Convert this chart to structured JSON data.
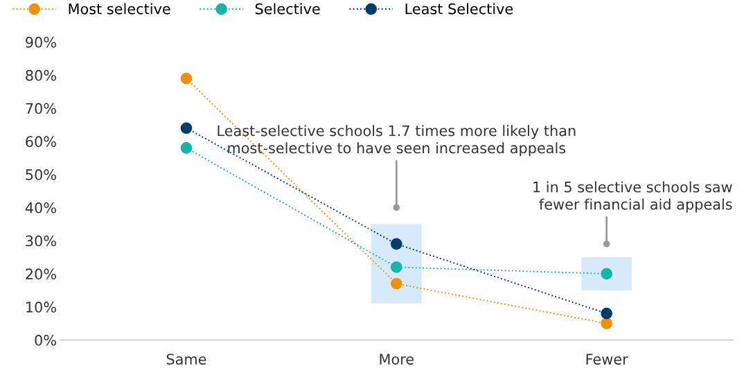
{
  "chart_data": {
    "type": "line",
    "categories": [
      "Same",
      "More",
      "Fewer"
    ],
    "series": [
      {
        "name": "Most selective",
        "color": "#f0900f",
        "values": [
          79,
          17,
          5
        ]
      },
      {
        "name": "Selective",
        "color": "#17b3ad",
        "values": [
          58,
          22,
          20
        ]
      },
      {
        "name": "Least Selective",
        "color": "#003d6b",
        "values": [
          64,
          29,
          8
        ]
      }
    ],
    "ylim": [
      0,
      90
    ],
    "yticks": [
      {
        "value": 0,
        "label": "0%"
      },
      {
        "value": 10,
        "label": "10%"
      },
      {
        "value": 20,
        "label": "20%"
      },
      {
        "value": 30,
        "label": "30%"
      },
      {
        "value": 40,
        "label": "40%"
      },
      {
        "value": 50,
        "label": "50%"
      },
      {
        "value": 60,
        "label": "60%"
      },
      {
        "value": 70,
        "label": "70%"
      },
      {
        "value": 80,
        "label": "80%"
      },
      {
        "value": 90,
        "label": "90%"
      }
    ],
    "annotations": [
      {
        "text": "Least-selective schools 1.7 times more likely than\nmost-selective to have seen increased appeals",
        "x": "More",
        "y": 40
      },
      {
        "text": "1 in 5 selective schools saw\nfewer financial aid appeals",
        "x": "Fewer",
        "y": 29
      }
    ],
    "marker": "circle",
    "line_style": "dotted",
    "legend": "top left",
    "grid": false
  }
}
